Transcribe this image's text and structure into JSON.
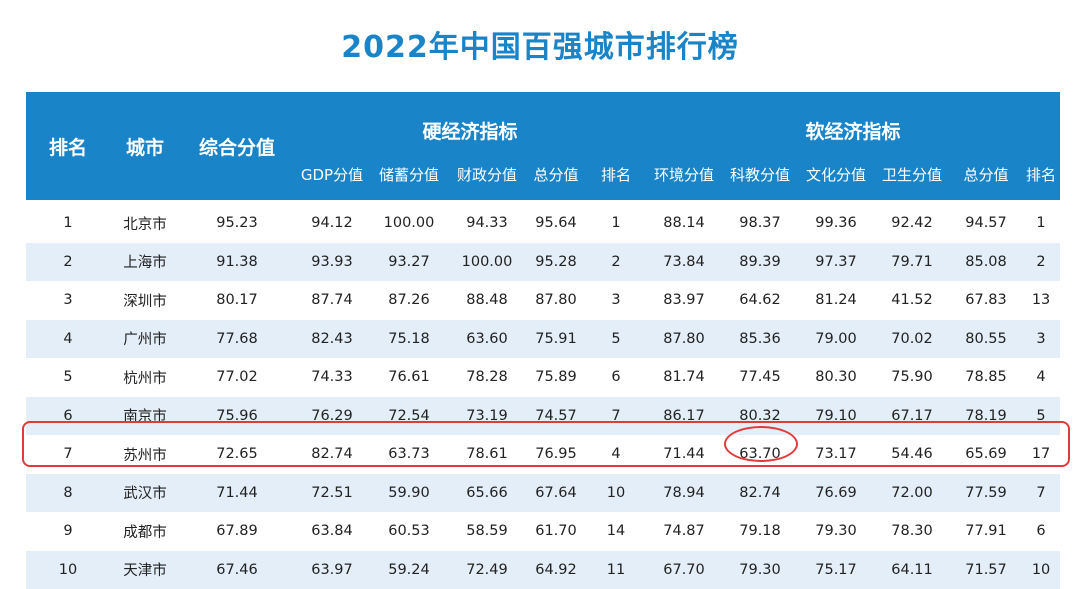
{
  "title": "2022年中国百强城市排行榜",
  "header": {
    "rank": "排名",
    "city": "城市",
    "composite": "综合分值",
    "hard_group": "硬经济指标",
    "soft_group": "软经济指标",
    "hard_cols": [
      "GDP分值",
      "储蓄分值",
      "财政分值",
      "总分值",
      "排名"
    ],
    "soft_cols": [
      "环境分值",
      "科教分值",
      "文化分值",
      "卫生分值",
      "总分值",
      "排名"
    ]
  },
  "rows": [
    [
      "1",
      "北京市",
      "95.23",
      "94.12",
      "100.00",
      "94.33",
      "95.64",
      "1",
      "88.14",
      "98.37",
      "99.36",
      "92.42",
      "94.57",
      "1"
    ],
    [
      "2",
      "上海市",
      "91.38",
      "93.93",
      "93.27",
      "100.00",
      "95.28",
      "2",
      "73.84",
      "89.39",
      "97.37",
      "79.71",
      "85.08",
      "2"
    ],
    [
      "3",
      "深圳市",
      "80.17",
      "87.74",
      "87.26",
      "88.48",
      "87.80",
      "3",
      "83.97",
      "64.62",
      "81.24",
      "41.52",
      "67.83",
      "13"
    ],
    [
      "4",
      "广州市",
      "77.68",
      "82.43",
      "75.18",
      "63.60",
      "75.91",
      "5",
      "87.80",
      "85.36",
      "79.00",
      "70.02",
      "80.55",
      "3"
    ],
    [
      "5",
      "杭州市",
      "77.02",
      "74.33",
      "76.61",
      "78.28",
      "75.89",
      "6",
      "81.74",
      "77.45",
      "80.30",
      "75.90",
      "78.85",
      "4"
    ],
    [
      "6",
      "南京市",
      "75.96",
      "76.29",
      "72.54",
      "73.19",
      "74.57",
      "7",
      "86.17",
      "80.32",
      "79.10",
      "67.17",
      "78.19",
      "5"
    ],
    [
      "7",
      "苏州市",
      "72.65",
      "82.74",
      "63.73",
      "78.61",
      "76.95",
      "4",
      "71.44",
      "63.70",
      "73.17",
      "54.46",
      "65.69",
      "17"
    ],
    [
      "8",
      "武汉市",
      "71.44",
      "72.51",
      "59.90",
      "65.66",
      "67.64",
      "10",
      "78.94",
      "82.74",
      "76.69",
      "72.00",
      "77.59",
      "7"
    ],
    [
      "9",
      "成都市",
      "67.89",
      "63.84",
      "60.53",
      "58.59",
      "61.70",
      "14",
      "74.87",
      "79.18",
      "79.30",
      "78.30",
      "77.91",
      "6"
    ],
    [
      "10",
      "天津市",
      "67.46",
      "63.97",
      "59.24",
      "72.49",
      "64.92",
      "11",
      "67.70",
      "79.30",
      "75.17",
      "64.11",
      "71.57",
      "10"
    ]
  ],
  "colors": {
    "header_bg": "#1a84c9",
    "title": "#1a84c9",
    "stripe": "#e4eef8",
    "highlight": "#e03a3a"
  }
}
